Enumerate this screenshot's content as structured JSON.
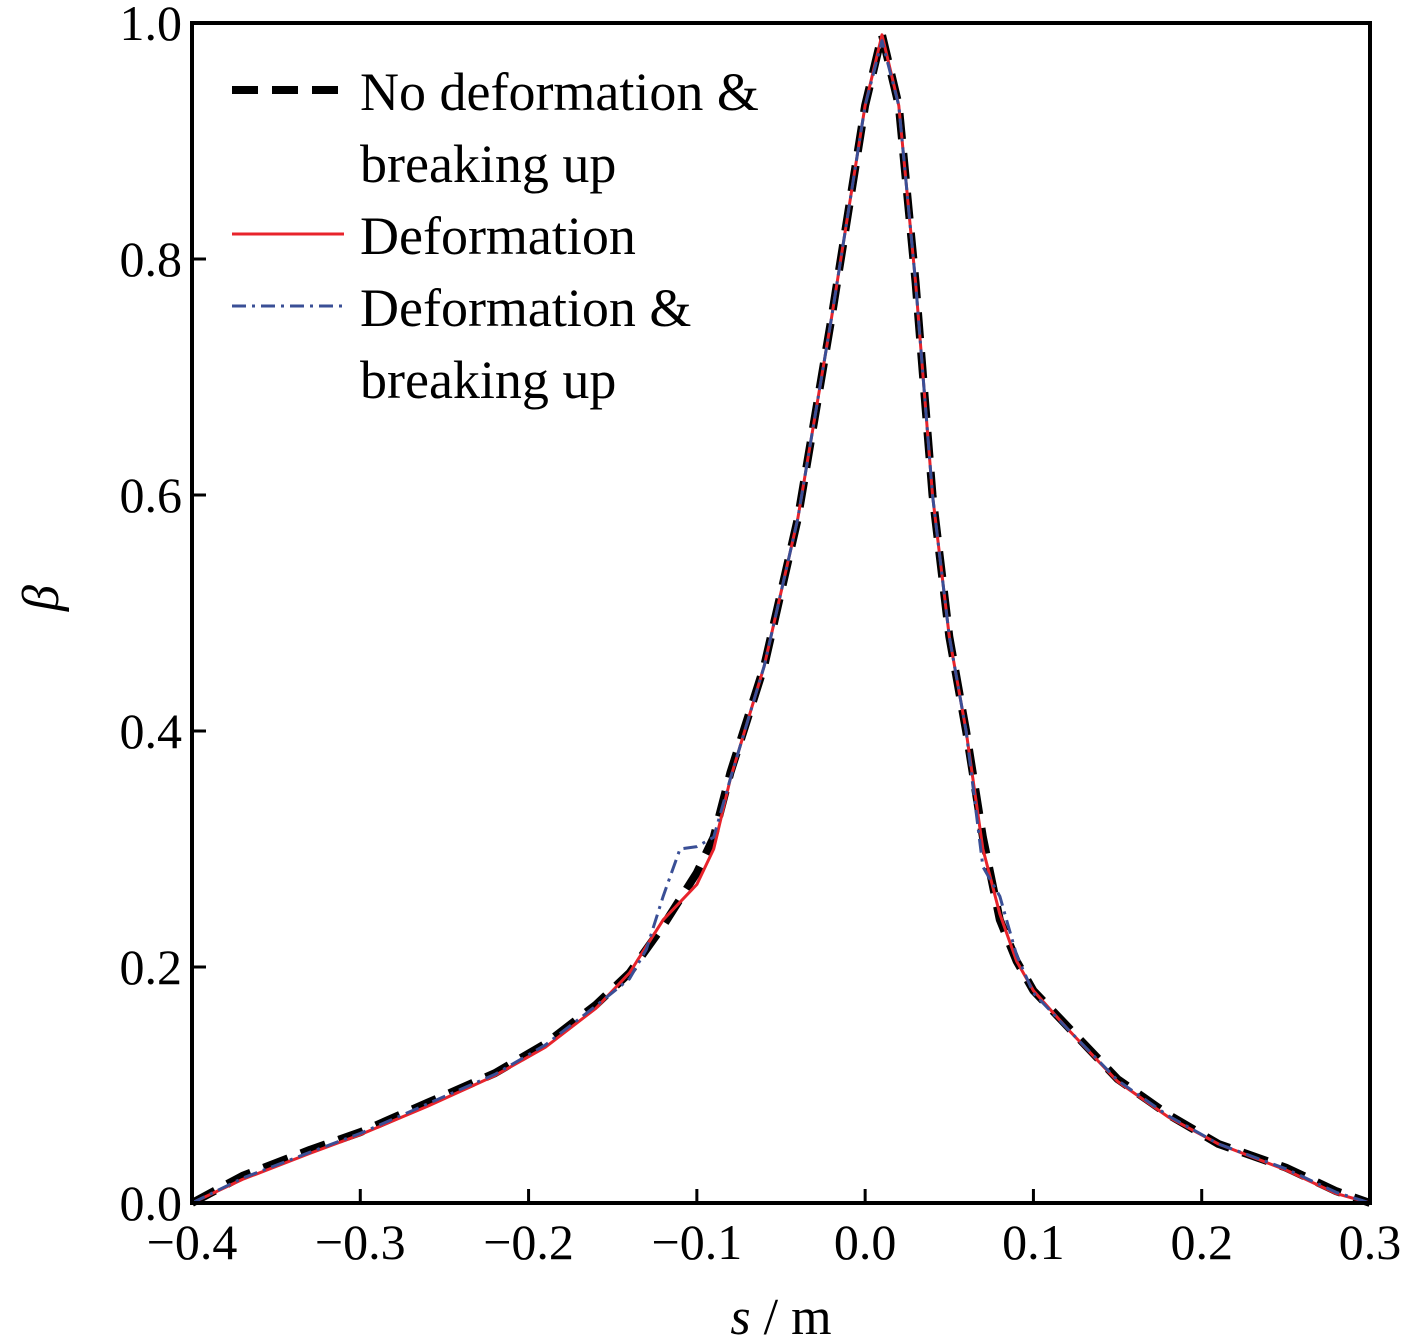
{
  "chart_data": {
    "type": "line",
    "xlabel_italic": "s",
    "xlabel_rest": " / m",
    "ylabel": "β",
    "xlim": [
      -0.4,
      0.3
    ],
    "ylim": [
      0.0,
      1.0
    ],
    "xticks": [
      -0.4,
      -0.3,
      -0.2,
      -0.1,
      0.0,
      0.1,
      0.2,
      0.3
    ],
    "xtick_labels": [
      "−0.4",
      "−0.3",
      "−0.2",
      "−0.1",
      "0.0",
      "0.1",
      "0.2",
      "0.3"
    ],
    "yticks": [
      0.0,
      0.2,
      0.4,
      0.6,
      0.8,
      1.0
    ],
    "ytick_labels": [
      "0.0",
      "0.2",
      "0.4",
      "0.6",
      "0.8",
      "1.0"
    ],
    "grid": false,
    "legend_position": "top-left",
    "series": [
      {
        "name_lines": [
          "No deformation &",
          "breaking up"
        ],
        "color": "#000000",
        "style": "dashed",
        "points": [
          [
            -0.4,
            0.0
          ],
          [
            -0.37,
            0.023
          ],
          [
            -0.33,
            0.045
          ],
          [
            -0.3,
            0.06
          ],
          [
            -0.26,
            0.085
          ],
          [
            -0.22,
            0.11
          ],
          [
            -0.19,
            0.135
          ],
          [
            -0.16,
            0.168
          ],
          [
            -0.14,
            0.195
          ],
          [
            -0.12,
            0.235
          ],
          [
            -0.1,
            0.28
          ],
          [
            -0.09,
            0.31
          ],
          [
            -0.08,
            0.365
          ],
          [
            -0.06,
            0.455
          ],
          [
            -0.04,
            0.58
          ],
          [
            -0.02,
            0.75
          ],
          [
            0.0,
            0.93
          ],
          [
            0.01,
            0.99
          ],
          [
            0.02,
            0.93
          ],
          [
            0.03,
            0.78
          ],
          [
            0.04,
            0.6
          ],
          [
            0.05,
            0.48
          ],
          [
            0.06,
            0.4
          ],
          [
            0.07,
            0.31
          ],
          [
            0.08,
            0.24
          ],
          [
            0.09,
            0.205
          ],
          [
            0.1,
            0.18
          ],
          [
            0.12,
            0.15
          ],
          [
            0.15,
            0.105
          ],
          [
            0.18,
            0.075
          ],
          [
            0.21,
            0.05
          ],
          [
            0.25,
            0.03
          ],
          [
            0.28,
            0.01
          ],
          [
            0.3,
            0.0
          ]
        ]
      },
      {
        "name_lines": [
          "Deformation"
        ],
        "color": "#e8232b",
        "style": "solid",
        "points": [
          [
            -0.4,
            0.0
          ],
          [
            -0.37,
            0.02
          ],
          [
            -0.33,
            0.042
          ],
          [
            -0.3,
            0.058
          ],
          [
            -0.26,
            0.082
          ],
          [
            -0.22,
            0.108
          ],
          [
            -0.19,
            0.132
          ],
          [
            -0.16,
            0.165
          ],
          [
            -0.14,
            0.195
          ],
          [
            -0.12,
            0.24
          ],
          [
            -0.1,
            0.27
          ],
          [
            -0.09,
            0.3
          ],
          [
            -0.08,
            0.36
          ],
          [
            -0.06,
            0.455
          ],
          [
            -0.04,
            0.58
          ],
          [
            -0.02,
            0.75
          ],
          [
            0.0,
            0.93
          ],
          [
            0.01,
            0.99
          ],
          [
            0.02,
            0.93
          ],
          [
            0.03,
            0.78
          ],
          [
            0.04,
            0.6
          ],
          [
            0.05,
            0.48
          ],
          [
            0.06,
            0.4
          ],
          [
            0.07,
            0.3
          ],
          [
            0.08,
            0.245
          ],
          [
            0.09,
            0.205
          ],
          [
            0.1,
            0.18
          ],
          [
            0.12,
            0.148
          ],
          [
            0.15,
            0.103
          ],
          [
            0.18,
            0.073
          ],
          [
            0.21,
            0.05
          ],
          [
            0.25,
            0.028
          ],
          [
            0.28,
            0.008
          ],
          [
            0.3,
            0.0
          ]
        ]
      },
      {
        "name_lines": [
          "Deformation &",
          "breaking up"
        ],
        "color": "#3a4f96",
        "style": "dashdot",
        "points": [
          [
            -0.4,
            0.0
          ],
          [
            -0.37,
            0.021
          ],
          [
            -0.33,
            0.043
          ],
          [
            -0.3,
            0.059
          ],
          [
            -0.26,
            0.084
          ],
          [
            -0.22,
            0.109
          ],
          [
            -0.19,
            0.134
          ],
          [
            -0.16,
            0.167
          ],
          [
            -0.14,
            0.19
          ],
          [
            -0.13,
            0.215
          ],
          [
            -0.12,
            0.26
          ],
          [
            -0.11,
            0.3
          ],
          [
            -0.1,
            0.302
          ],
          [
            -0.09,
            0.31
          ],
          [
            -0.08,
            0.36
          ],
          [
            -0.06,
            0.455
          ],
          [
            -0.04,
            0.58
          ],
          [
            -0.02,
            0.75
          ],
          [
            0.0,
            0.93
          ],
          [
            0.01,
            0.985
          ],
          [
            0.02,
            0.93
          ],
          [
            0.03,
            0.78
          ],
          [
            0.04,
            0.6
          ],
          [
            0.05,
            0.48
          ],
          [
            0.06,
            0.4
          ],
          [
            0.07,
            0.285
          ],
          [
            0.08,
            0.26
          ],
          [
            0.09,
            0.21
          ],
          [
            0.1,
            0.178
          ],
          [
            0.12,
            0.148
          ],
          [
            0.15,
            0.104
          ],
          [
            0.18,
            0.074
          ],
          [
            0.21,
            0.05
          ],
          [
            0.25,
            0.029
          ],
          [
            0.28,
            0.009
          ],
          [
            0.3,
            0.0
          ]
        ]
      }
    ]
  }
}
